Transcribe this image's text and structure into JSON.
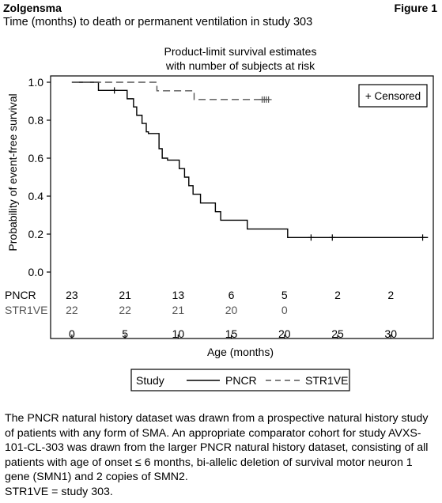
{
  "header": {
    "brand": "Zolgensma",
    "figure_label": "Figure 1",
    "subtitle": "Time (months) to death or permanent ventilation in study 303"
  },
  "caption": {
    "paragraph": "The PNCR natural history dataset was drawn from a prospective natural history study of patients with any form of SMA.  An appropriate comparator cohort for study AVXS-101-CL-303 was drawn from the larger PNCR natural history dataset, consisting of all patients with age of onset ≤ 6 months, bi-allelic deletion of survival motor neuron 1 gene (SMN1) and 2 copies of SMN2.",
    "note": "STR1VE = study 303."
  },
  "chart_data": {
    "type": "line",
    "title_line1": "Product-limit survival estimates",
    "title_line2": "with number of subjects at risk",
    "xlabel": "Age (months)",
    "ylabel": "Probability of event-free survival",
    "xlim": [
      -2,
      34
    ],
    "ylim": [
      0.0,
      1.0
    ],
    "xticks": [
      0,
      5,
      10,
      15,
      20,
      25,
      30
    ],
    "yticks": [
      0.0,
      0.2,
      0.4,
      0.6,
      0.8,
      1.0
    ],
    "ytick_labels": [
      "0.0",
      "0.2",
      "0.4",
      "0.6",
      "0.8",
      "1.0"
    ],
    "inset_legend": "+ Censored",
    "grid": false,
    "series": [
      {
        "name": "PNCR",
        "color": "#000000",
        "dash": "solid",
        "steps": [
          [
            0,
            1.0
          ],
          [
            2.5,
            0.957
          ],
          [
            5.2,
            0.913
          ],
          [
            5.8,
            0.87
          ],
          [
            6.1,
            0.826
          ],
          [
            6.6,
            0.783
          ],
          [
            7.0,
            0.739
          ],
          [
            7.2,
            0.73
          ],
          [
            8.2,
            0.65
          ],
          [
            8.5,
            0.6
          ],
          [
            9.0,
            0.59
          ],
          [
            10.1,
            0.545
          ],
          [
            10.6,
            0.5
          ],
          [
            11.0,
            0.455
          ],
          [
            11.4,
            0.41
          ],
          [
            12.1,
            0.364
          ],
          [
            13.5,
            0.318
          ],
          [
            14.0,
            0.273
          ],
          [
            16.5,
            0.227
          ],
          [
            20.3,
            0.182
          ],
          [
            33.5,
            0.182
          ]
        ],
        "censored": [
          [
            4.0,
            0.957
          ],
          [
            22.5,
            0.182
          ],
          [
            24.5,
            0.182
          ],
          [
            33.0,
            0.182
          ]
        ]
      },
      {
        "name": "STR1VE",
        "color": "#555555",
        "dash": "dashed",
        "steps": [
          [
            0,
            1.0
          ],
          [
            8.0,
            0.955
          ],
          [
            11.5,
            0.909
          ],
          [
            18.5,
            0.909
          ]
        ],
        "censored": [
          [
            17.9,
            0.909
          ],
          [
            18.1,
            0.909
          ],
          [
            18.3,
            0.909
          ],
          [
            18.5,
            0.909
          ]
        ]
      }
    ],
    "at_risk": {
      "times": [
        0,
        5,
        10,
        15,
        20,
        25,
        30
      ],
      "rows": [
        {
          "label": "PNCR",
          "values": [
            "23",
            "21",
            "13",
            "6",
            "5",
            "2",
            "2"
          ],
          "color": "#000000"
        },
        {
          "label": "STR1VE",
          "values": [
            "22",
            "22",
            "21",
            "20",
            "0",
            "",
            ""
          ],
          "color": "#555555"
        }
      ]
    },
    "legend": {
      "title": "Study",
      "entries": [
        {
          "label": "PNCR",
          "color": "#000000",
          "dash": "solid"
        },
        {
          "label": "STR1VE",
          "color": "#555555",
          "dash": "dashed"
        }
      ]
    }
  }
}
